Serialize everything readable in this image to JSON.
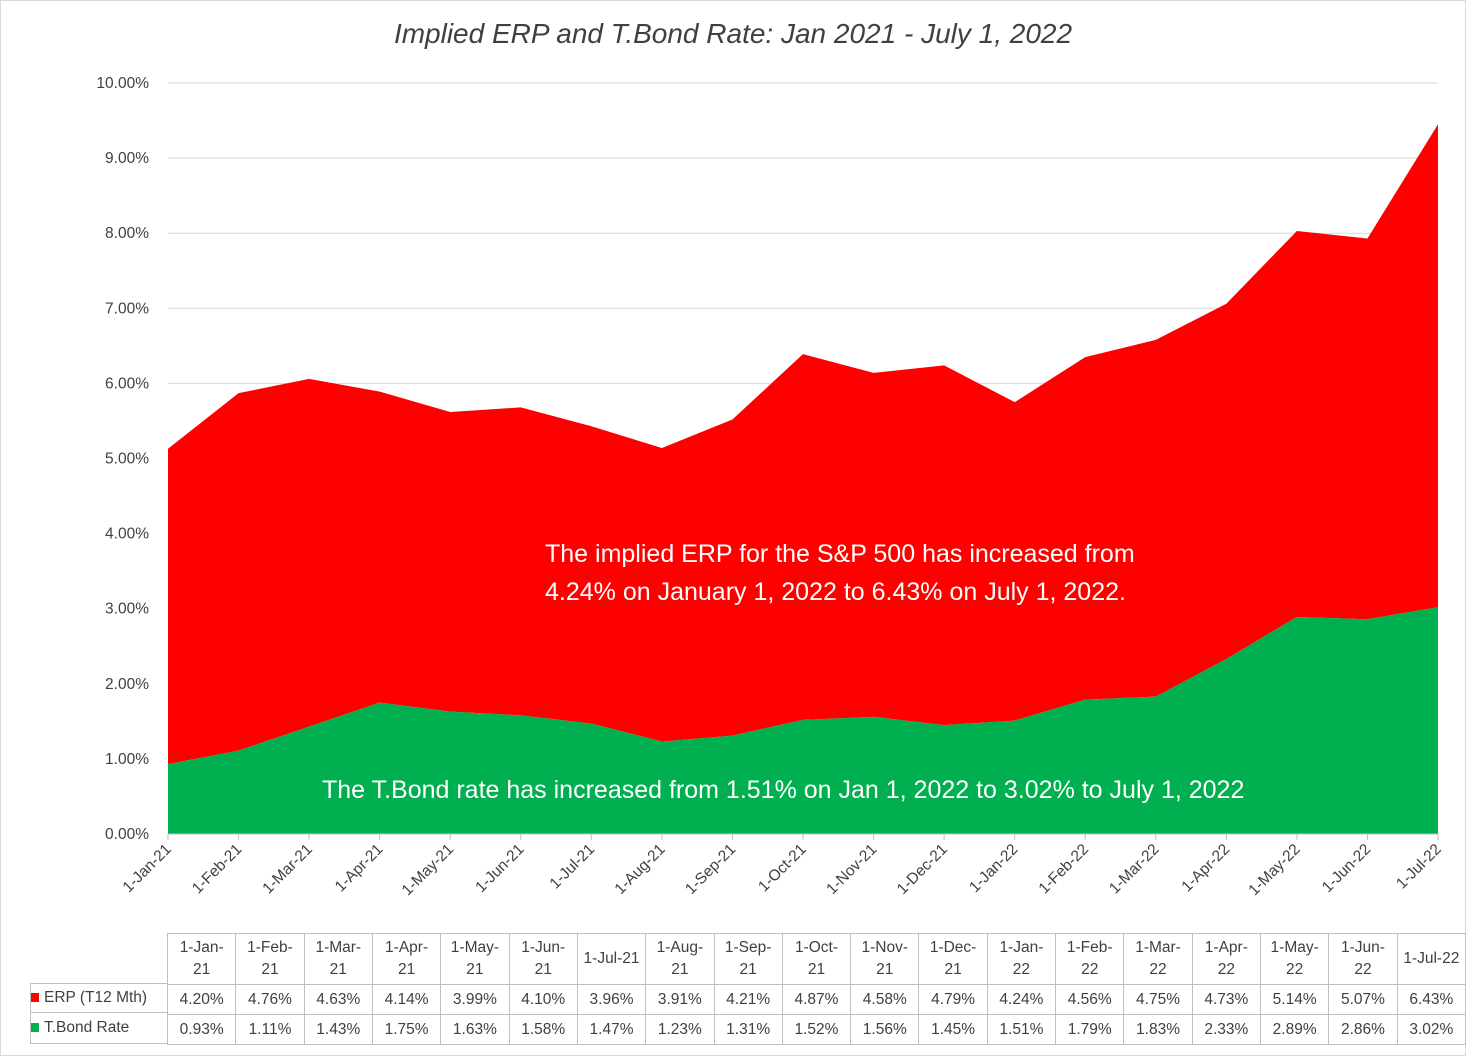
{
  "chart_data": {
    "type": "area",
    "stacked": true,
    "title": "Implied ERP and T.Bond Rate: Jan 2021 - July 1, 2022",
    "xlabel": "",
    "ylabel": "",
    "ylim": [
      0,
      10
    ],
    "y_ticks": [
      "0.00%",
      "1.00%",
      "2.00%",
      "3.00%",
      "4.00%",
      "5.00%",
      "6.00%",
      "7.00%",
      "8.00%",
      "9.00%",
      "10.00%"
    ],
    "categories": [
      "1-Jan-21",
      "1-Feb-21",
      "1-Mar-21",
      "1-Apr-21",
      "1-May-21",
      "1-Jun-21",
      "1-Jul-21",
      "1-Aug-21",
      "1-Sep-21",
      "1-Oct-21",
      "1-Nov-21",
      "1-Dec-21",
      "1-Jan-22",
      "1-Feb-22",
      "1-Mar-22",
      "1-Apr-22",
      "1-May-22",
      "1-Jun-22",
      "1-Jul-22"
    ],
    "series": [
      {
        "name": "T.Bond Rate",
        "color": "#00b050",
        "values": [
          0.93,
          1.11,
          1.43,
          1.75,
          1.63,
          1.58,
          1.47,
          1.23,
          1.31,
          1.52,
          1.56,
          1.45,
          1.51,
          1.79,
          1.83,
          2.33,
          2.89,
          2.86,
          3.02
        ],
        "labels": [
          "0.93%",
          "1.11%",
          "1.43%",
          "1.75%",
          "1.63%",
          "1.58%",
          "1.47%",
          "1.23%",
          "1.31%",
          "1.52%",
          "1.56%",
          "1.45%",
          "1.51%",
          "1.79%",
          "1.83%",
          "2.33%",
          "2.89%",
          "2.86%",
          "3.02%"
        ]
      },
      {
        "name": "ERP (T12 Mth)",
        "color": "#ff0000",
        "values": [
          4.2,
          4.76,
          4.63,
          4.14,
          3.99,
          4.1,
          3.96,
          3.91,
          4.21,
          4.87,
          4.58,
          4.79,
          4.24,
          4.56,
          4.75,
          4.73,
          5.14,
          5.07,
          6.43
        ],
        "labels": [
          "4.20%",
          "4.76%",
          "4.63%",
          "4.14%",
          "3.99%",
          "4.10%",
          "3.96%",
          "3.91%",
          "4.21%",
          "4.87%",
          "4.58%",
          "4.79%",
          "4.24%",
          "4.56%",
          "4.75%",
          "4.73%",
          "5.14%",
          "5.07%",
          "6.43%"
        ]
      }
    ],
    "table_header": [
      "1-Jan-\n21",
      "1-Feb-\n21",
      "1-Mar-\n21",
      "1-Apr-\n21",
      "1-May-\n21",
      "1-Jun-\n21",
      "1-Jul-21",
      "1-Aug-\n21",
      "1-Sep-\n21",
      "1-Oct-\n21",
      "1-Nov-\n21",
      "1-Dec-\n21",
      "1-Jan-\n22",
      "1-Feb-\n22",
      "1-Mar-\n22",
      "1-Apr-\n22",
      "1-May-\n22",
      "1-Jun-\n22",
      "1-Jul-22"
    ],
    "annotations": [
      {
        "id": "erp-note",
        "lines": [
          "The implied ERP for the S&P 500 has increased from",
          "4.24% on January 1, 2022 to 6.43% on July 1, 2022."
        ]
      },
      {
        "id": "tbond-note",
        "lines": [
          "The T.Bond rate has increased from 1.51% on Jan 1, 2022 to 3.02% to July 1, 2022"
        ]
      }
    ],
    "legend_position": "data-table"
  }
}
